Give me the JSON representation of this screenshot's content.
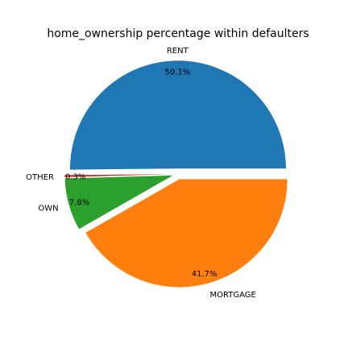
{
  "chart_data": {
    "type": "pie",
    "title": "home_ownership percentage within defaulters",
    "slices": [
      {
        "label": "RENT",
        "percent_label": "50.1%",
        "value": 50.1,
        "color": "#1f77b4"
      },
      {
        "label": "OTHER",
        "percent_label": "0.3%",
        "value": 0.3,
        "color": "#d62728"
      },
      {
        "label": "OWN",
        "percent_label": "7.8%",
        "value": 7.8,
        "color": "#2ca02c"
      },
      {
        "label": "MORTGAGE",
        "percent_label": "41.7%",
        "value": 41.7,
        "color": "#ff7f0e"
      }
    ],
    "start_angle_deg": 0,
    "direction": "counterclockwise",
    "exploded": true
  }
}
